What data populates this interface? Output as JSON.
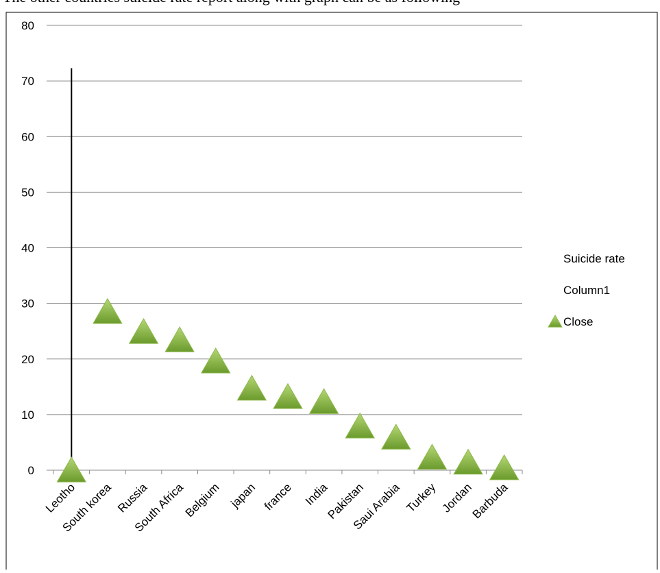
{
  "caption": "The other countries suicide rate report along with graph can be as following",
  "chart_data": {
    "type": "stock",
    "categories": [
      "Leotho",
      "South korea",
      "Russia",
      "South Africa",
      "Belgium",
      "japan",
      "france",
      "India",
      "Pakistan",
      "Saui Arabia",
      "Turkey",
      "Jordan",
      "Barbuda"
    ],
    "series": [
      {
        "name": "Suicide rate",
        "values": [
          72.3,
          28.5,
          24.9,
          23.4,
          19.6,
          14.7,
          13.2,
          12.3,
          7.9,
          5.9,
          2.3,
          1.4,
          0.4
        ]
      },
      {
        "name": "Column1",
        "values": [
          0,
          28.5,
          24.9,
          23.4,
          19.6,
          14.7,
          13.2,
          12.3,
          7.9,
          5.9,
          2.3,
          1.4,
          0.4
        ]
      },
      {
        "name": "Close",
        "color": "#8cb84a",
        "values": [
          0,
          28.5,
          24.9,
          23.4,
          19.6,
          14.7,
          13.2,
          12.3,
          7.9,
          5.9,
          2.3,
          1.4,
          0.4
        ]
      }
    ],
    "ylim": [
      0,
      80
    ],
    "yticks": [
      0,
      10,
      20,
      30,
      40,
      50,
      60,
      70,
      80
    ],
    "grid": true,
    "legend": "right"
  }
}
